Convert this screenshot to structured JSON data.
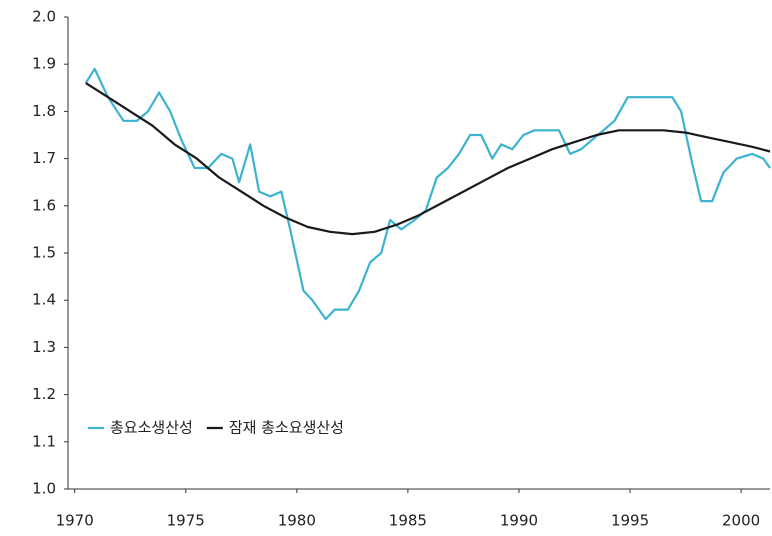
{
  "chart_data": {
    "type": "line",
    "xlim": [
      1969.7,
      2001.3
    ],
    "xticks": [
      1970,
      1975,
      1980,
      1985,
      1990,
      1995,
      2000
    ],
    "ylim": [
      1.0,
      2.0
    ],
    "yticks": [
      {
        "value": 1.0,
        "label": "1.0"
      },
      {
        "value": 1.1,
        "label": "1.1"
      },
      {
        "value": 1.2,
        "label": "1.2"
      },
      {
        "value": 1.3,
        "label": "1.3"
      },
      {
        "value": 1.4,
        "label": "1.4"
      },
      {
        "value": 1.5,
        "label": "1.5"
      },
      {
        "value": 1.6,
        "label": "1.6"
      },
      {
        "value": 1.7,
        "label": "1.7"
      },
      {
        "value": 1.8,
        "label": "1.8"
      },
      {
        "value": 1.9,
        "label": "1.9"
      },
      {
        "value": 2.0,
        "label": "2.0"
      }
    ],
    "legend": "lower-left",
    "series": [
      {
        "name": "총요소생산성",
        "color": "#3bb3cf",
        "x": [
          1970.5,
          1970.9,
          1971.5,
          1972.2,
          1972.8,
          1973.3,
          1973.8,
          1974.3,
          1974.8,
          1975.4,
          1976,
          1976.6,
          1977.1,
          1977.4,
          1977.9,
          1978.3,
          1978.8,
          1979.3,
          1979.7,
          1980.3,
          1980.7,
          1981.3,
          1981.7,
          1982.3,
          1982.8,
          1983.3,
          1983.8,
          1984.2,
          1984.7,
          1985.3,
          1985.8,
          1986.3,
          1986.8,
          1987.3,
          1987.8,
          1988.3,
          1988.8,
          1989.2,
          1989.7,
          1990.2,
          1990.7,
          1991.3,
          1991.8,
          1992.3,
          1992.8,
          1993.3,
          1993.8,
          1994.3,
          1994.9,
          1995.5,
          1996.3,
          1996.9,
          1997.3,
          1997.8,
          1998.2,
          1998.7,
          1999.2,
          1999.8,
          2000.5,
          2001.0,
          2001.3
        ],
        "values": [
          1.86,
          1.89,
          1.83,
          1.78,
          1.78,
          1.8,
          1.84,
          1.8,
          1.74,
          1.68,
          1.68,
          1.71,
          1.7,
          1.65,
          1.73,
          1.63,
          1.62,
          1.63,
          1.55,
          1.42,
          1.4,
          1.36,
          1.38,
          1.38,
          1.42,
          1.48,
          1.5,
          1.57,
          1.55,
          1.57,
          1.59,
          1.66,
          1.68,
          1.71,
          1.75,
          1.75,
          1.7,
          1.73,
          1.72,
          1.75,
          1.76,
          1.76,
          1.76,
          1.71,
          1.72,
          1.74,
          1.76,
          1.78,
          1.83,
          1.83,
          1.83,
          1.83,
          1.8,
          1.69,
          1.61,
          1.61,
          1.67,
          1.7,
          1.71,
          1.7,
          1.68
        ]
      },
      {
        "name": "잠재 총소요생산성",
        "color": "#1a1a1a",
        "x": [
          1970.5,
          1971.5,
          1972.5,
          1973.5,
          1974.5,
          1975.5,
          1976.5,
          1977.5,
          1978.5,
          1979.5,
          1980.5,
          1981.5,
          1982.5,
          1983.5,
          1984.5,
          1985.5,
          1986.5,
          1987.5,
          1988.5,
          1989.5,
          1990.5,
          1991.5,
          1992.5,
          1993.5,
          1994.5,
          1995.5,
          1996.5,
          1997.5,
          1998.5,
          1999.5,
          2000.5,
          2001.3
        ],
        "values": [
          1.86,
          1.83,
          1.8,
          1.77,
          1.73,
          1.7,
          1.66,
          1.63,
          1.6,
          1.575,
          1.555,
          1.545,
          1.54,
          1.545,
          1.56,
          1.58,
          1.605,
          1.63,
          1.655,
          1.68,
          1.7,
          1.72,
          1.735,
          1.75,
          1.76,
          1.76,
          1.76,
          1.755,
          1.745,
          1.735,
          1.725,
          1.715
        ]
      }
    ]
  }
}
